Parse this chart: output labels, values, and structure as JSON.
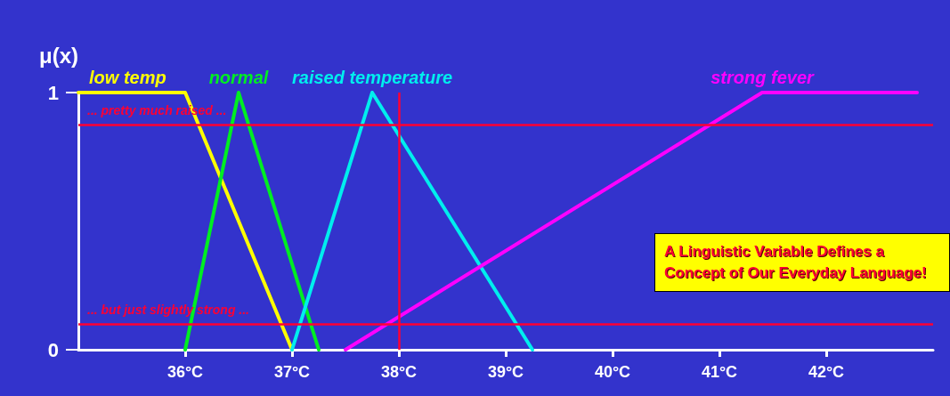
{
  "chart_data": {
    "type": "line",
    "ylabel": "μ(x)",
    "xlim": [
      35,
      43
    ],
    "ylim": [
      0,
      1
    ],
    "xticks": [
      {
        "value": 36,
        "label": "36°C"
      },
      {
        "value": 37,
        "label": "37°C"
      },
      {
        "value": 38,
        "label": "38°C"
      },
      {
        "value": 39,
        "label": "39°C"
      },
      {
        "value": 40,
        "label": "40°C"
      },
      {
        "value": 41,
        "label": "41°C"
      },
      {
        "value": 42,
        "label": "42°C"
      }
    ],
    "yticks": [
      0,
      1
    ],
    "series": [
      {
        "name": "low temp",
        "color": "#ffff00",
        "x": [
          35,
          36,
          37
        ],
        "values": [
          1,
          1,
          0
        ]
      },
      {
        "name": "normal",
        "color": "#00ee22",
        "x": [
          36,
          36.5,
          37.25
        ],
        "values": [
          0,
          1,
          0
        ]
      },
      {
        "name": "raised temperature",
        "color": "#00eeee",
        "x": [
          37,
          37.75,
          39.25
        ],
        "values": [
          0,
          1,
          0
        ]
      },
      {
        "name": "strong fever",
        "color": "#ff00ff",
        "x": [
          37.5,
          41.4,
          42.85
        ],
        "values": [
          0,
          1,
          1
        ]
      }
    ],
    "ref_lines": [
      {
        "axis": "y",
        "value": 0.875,
        "label": "... pretty much raised ...",
        "color": "#ff0033"
      },
      {
        "axis": "y",
        "value": 0.1,
        "label": "... but just slightly strong ...",
        "color": "#ff0033"
      },
      {
        "axis": "x",
        "value": 38,
        "color": "#ff0033"
      }
    ],
    "annotations": [
      "A Linguistic Variable Defines a Concept of Our Everyday Language!"
    ],
    "grid": false,
    "marker": "none",
    "line_style": "solid"
  }
}
